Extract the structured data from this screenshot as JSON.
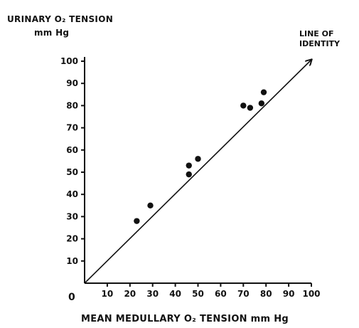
{
  "chart_data": {
    "type": "scatter",
    "title": "",
    "ylabel_lines": [
      "URINARY O₂ TENSION",
      "mm Hg"
    ],
    "xlabel": "MEAN MEDULLARY O₂ TENSION mm Hg",
    "origin_label": "0",
    "x_ticks": [
      "10",
      "20",
      "30",
      "40",
      "50",
      "60",
      "70",
      "80",
      "90",
      "100"
    ],
    "y_ticks": [
      "10",
      "20",
      "30",
      "40",
      "50",
      "60",
      "70",
      "80",
      "90",
      "100"
    ],
    "xlim": [
      0,
      100
    ],
    "ylim": [
      0,
      100
    ],
    "grid": false,
    "points": [
      {
        "x": 23,
        "y": 28
      },
      {
        "x": 29,
        "y": 35
      },
      {
        "x": 46,
        "y": 49
      },
      {
        "x": 46,
        "y": 53
      },
      {
        "x": 50,
        "y": 56
      },
      {
        "x": 70,
        "y": 80
      },
      {
        "x": 73,
        "y": 79
      },
      {
        "x": 78,
        "y": 81
      },
      {
        "x": 79,
        "y": 86
      }
    ],
    "reference_line": {
      "from": [
        0,
        0
      ],
      "to": [
        100,
        100
      ]
    },
    "annotation_lines": [
      "LINE OF",
      "IDENTITY"
    ]
  }
}
